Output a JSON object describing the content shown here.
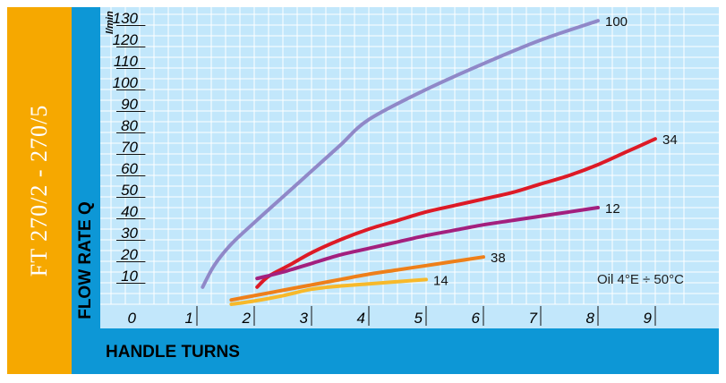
{
  "side_title": "FT 270/2 - 270/5",
  "note": "Oil 4°E ÷ 50°C",
  "colors": {
    "orange_band": "#f6a800",
    "blue_frame": "#0d97d6",
    "plot_bg": "#c2e7fb"
  },
  "chart_data": {
    "type": "line",
    "title": "",
    "xlabel": "HANDLE TURNS",
    "ylabel": "FLOW RATE Q",
    "y_unit": "l/min",
    "xlim": [
      0,
      9.7
    ],
    "ylim": [
      0,
      135
    ],
    "x_ticks": [
      "0",
      "1",
      "2",
      "3",
      "4",
      "5",
      "6",
      "7",
      "8",
      "9"
    ],
    "y_ticks": [
      "10",
      "20",
      "30",
      "40",
      "50",
      "60",
      "70",
      "80",
      "90",
      "100",
      "110",
      "120",
      "130"
    ],
    "grid": true,
    "series": [
      {
        "name": "100",
        "color": "#9088c8",
        "x": [
          1.1,
          1.3,
          1.6,
          2.0,
          2.5,
          3.0,
          3.5,
          4.0,
          5.0,
          6.0,
          7.0,
          8.0
        ],
        "y": [
          8,
          18,
          28,
          38,
          50,
          62,
          74,
          86,
          100,
          112,
          123,
          132
        ]
      },
      {
        "name": "34",
        "color": "#dd1a26",
        "x": [
          2.05,
          2.25,
          2.6,
          3.0,
          3.5,
          4.0,
          4.5,
          5.0,
          5.5,
          6.0,
          6.5,
          7.0,
          7.5,
          8.0,
          8.5,
          9.0
        ],
        "y": [
          8,
          13,
          18,
          24,
          30,
          35,
          39,
          43,
          46,
          49,
          52,
          56,
          60,
          65,
          71,
          77
        ]
      },
      {
        "name": "12",
        "color": "#a3207e",
        "x": [
          2.05,
          2.5,
          3.0,
          3.5,
          4.0,
          4.5,
          5.0,
          5.5,
          6.0,
          6.5,
          7.0,
          7.5,
          8.0
        ],
        "y": [
          12,
          15,
          19,
          23,
          26,
          29,
          32,
          34.5,
          37,
          39,
          41,
          43,
          45
        ]
      },
      {
        "name": "38",
        "color": "#ee7f1a",
        "x": [
          1.6,
          2.0,
          2.5,
          3.0,
          3.5,
          4.0,
          4.5,
          5.0,
          5.5,
          6.0
        ],
        "y": [
          2,
          4,
          6.5,
          9,
          11.5,
          14,
          16,
          18,
          20,
          22
        ]
      },
      {
        "name": "14",
        "color": "#f7b92a",
        "x": [
          1.6,
          2.0,
          2.5,
          3.0,
          3.5,
          4.0,
          4.5,
          5.0
        ],
        "y": [
          0,
          1.5,
          4,
          7,
          8.5,
          9.5,
          10.5,
          11.5
        ]
      }
    ]
  }
}
